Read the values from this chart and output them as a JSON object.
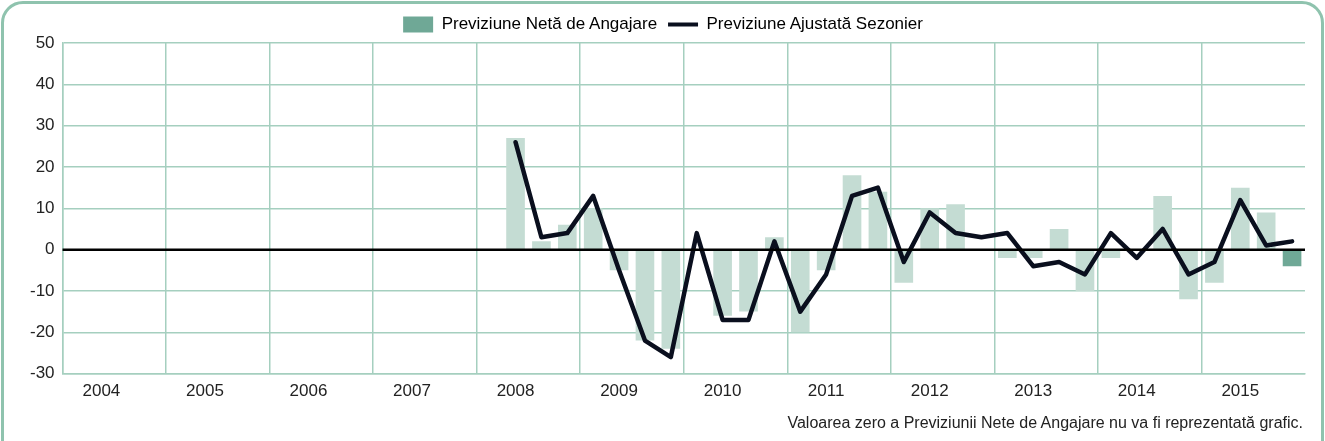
{
  "chart_data": {
    "type": "bar",
    "categories": [
      null,
      "2004",
      null,
      null,
      null,
      "2005",
      null,
      null,
      null,
      "2006",
      null,
      null,
      null,
      "2007",
      null,
      null,
      null,
      "2008",
      null,
      null,
      null,
      "2009",
      null,
      null,
      null,
      "2010",
      null,
      null,
      null,
      "2011",
      null,
      null,
      null,
      "2012",
      null,
      null,
      null,
      "2013",
      null,
      null,
      null,
      "2014",
      null,
      null,
      null,
      "2015",
      null,
      null
    ],
    "series": [
      {
        "name": "Previziune Netă de Angajare",
        "color": "#6fa896",
        "colors": [
          "#c4dcd3",
          "#c4dcd3",
          "#c4dcd3",
          "#c4dcd3",
          "#c4dcd3",
          "#c4dcd3",
          "#c4dcd3",
          "#c4dcd3",
          "#c4dcd3",
          "#c4dcd3",
          "#c4dcd3",
          "#c4dcd3",
          "#c4dcd3",
          "#c4dcd3",
          "#c4dcd3",
          "#c4dcd3",
          "#c4dcd3",
          "#c4dcd3",
          "#c4dcd3",
          "#c4dcd3",
          "#c4dcd3",
          "#c4dcd3",
          "#c4dcd3",
          "#c4dcd3",
          "#c4dcd3",
          "#c4dcd3",
          "#c4dcd3",
          "#c4dcd3",
          "#c4dcd3",
          "#c4dcd3",
          "#c4dcd3",
          "#c4dcd3",
          "#c4dcd3",
          "#c4dcd3",
          "#c4dcd3",
          "#c4dcd3",
          "#c4dcd3",
          "#c4dcd3",
          "#c4dcd3",
          "#c4dcd3",
          "#c4dcd3",
          "#c4dcd3",
          "#c4dcd3",
          "#c4dcd3",
          "#c4dcd3",
          "#c4dcd3",
          "#c4dcd3",
          "#6fa896"
        ],
        "values": [
          null,
          null,
          null,
          null,
          null,
          null,
          null,
          null,
          null,
          null,
          null,
          null,
          null,
          null,
          null,
          null,
          null,
          27,
          2,
          6,
          10,
          -5,
          -22,
          -24,
          0,
          -16,
          -15,
          3,
          -20,
          -5,
          18,
          14,
          -8,
          10,
          11,
          0,
          -2,
          -2,
          5,
          -10,
          -2,
          0,
          13,
          -12,
          -8,
          15,
          9,
          -4
        ]
      },
      {
        "name": "Previziune Ajustată Sezonier",
        "type": "line",
        "color": "#0a0f1e",
        "marker": "none",
        "line_style": "solid",
        "values": [
          null,
          null,
          null,
          null,
          null,
          null,
          null,
          null,
          null,
          null,
          null,
          null,
          null,
          null,
          null,
          null,
          null,
          26,
          3,
          4,
          13,
          -5,
          -22,
          -26,
          4,
          -17,
          -17,
          2,
          -15,
          -6,
          13,
          15,
          -3,
          9,
          4,
          3,
          4,
          -4,
          -3,
          -6,
          4,
          -2,
          5,
          -6,
          -3,
          12,
          1,
          2
        ]
      }
    ],
    "ylim": [
      -30,
      50
    ],
    "yticks": [
      -30,
      -20,
      -10,
      0,
      10,
      20,
      30,
      40,
      50
    ],
    "grid": true,
    "legend": "top",
    "ref_lines": [
      {
        "axis": "y",
        "value": 0,
        "color": "#000000"
      }
    ],
    "annotations": [
      "Valoarea zero a Previziunii Nete de Angajare nu va fi reprezentată grafic."
    ]
  }
}
